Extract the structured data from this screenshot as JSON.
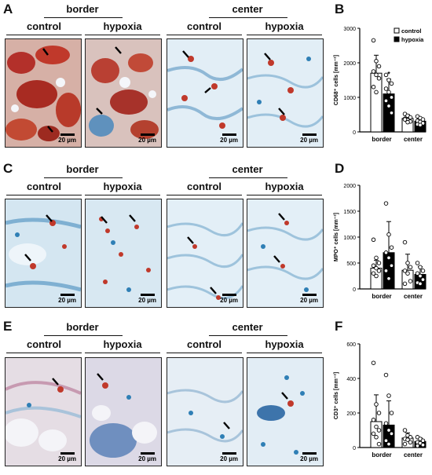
{
  "panels": [
    {
      "letter": "A",
      "stain": "cd68",
      "groups": [
        {
          "title": "border",
          "cols": [
            {
              "label": "control",
              "scale": "20 µm"
            },
            {
              "label": "hypoxia",
              "scale": "20 µm"
            }
          ]
        },
        {
          "title": "center",
          "cols": [
            {
              "label": "control",
              "scale": "20 µm"
            },
            {
              "label": "hypoxia",
              "scale": "20 µm"
            }
          ]
        }
      ]
    },
    {
      "letter": "C",
      "stain": "mpo",
      "groups": [
        {
          "title": "border",
          "cols": [
            {
              "label": "control",
              "scale": "20 µm"
            },
            {
              "label": "hypoxia",
              "scale": "20 µm"
            }
          ]
        },
        {
          "title": "center",
          "cols": [
            {
              "label": "control",
              "scale": "20 µm"
            },
            {
              "label": "hypoxia",
              "scale": "20 µm"
            }
          ]
        }
      ]
    },
    {
      "letter": "E",
      "stain": "cd3",
      "groups": [
        {
          "title": "border",
          "cols": [
            {
              "label": "control",
              "scale": "20 µm"
            },
            {
              "label": "hypoxia",
              "scale": "20 µm"
            }
          ]
        },
        {
          "title": "center",
          "cols": [
            {
              "label": "control",
              "scale": "20 µm"
            },
            {
              "label": "hypoxia",
              "scale": "20 µm"
            }
          ]
        }
      ]
    }
  ],
  "colors": {
    "bg_tissue": "#dfeef6",
    "stroma": "#8fb8d6",
    "nuclei_blue": "#2f7fb5",
    "stain_red": "#c0392b",
    "bar_control": "#ffffff",
    "bar_hypoxia": "#000000"
  },
  "chart_data": [
    {
      "letter": "B",
      "type": "bar",
      "categories": [
        "border",
        "center"
      ],
      "ylabel": "CD68⁺ cells [mm⁻²]",
      "ylim": [
        0,
        3000
      ],
      "yticks": [
        "0",
        "1000",
        "2000",
        "3000"
      ],
      "legend": [
        "control",
        "hypoxia"
      ],
      "legend_position": "top-right",
      "series": [
        {
          "name": "control",
          "values": [
            1700,
            390
          ],
          "err": [
            520,
            110
          ],
          "points": [
            [
              2650,
              2050,
              1900,
              1750,
              1650,
              1550,
              1300,
              1150
            ],
            [
              520,
              470,
              420,
              380,
              340,
              300,
              360,
              280
            ]
          ]
        },
        {
          "name": "hypoxia",
          "values": [
            1100,
            310
          ],
          "err": [
            430,
            100
          ],
          "points": [
            [
              1650,
              1500,
              1400,
              1250,
              1150,
              1000,
              900,
              750,
              550
            ],
            [
              450,
              400,
              360,
              320,
              290,
              250,
              220,
              200
            ]
          ]
        }
      ],
      "annotation": "*"
    },
    {
      "letter": "D",
      "type": "bar",
      "categories": [
        "border",
        "center"
      ],
      "ylabel": "MPO⁺ cells [mm⁻²]",
      "ylim": [
        0,
        2000
      ],
      "yticks": [
        "0",
        "500",
        "1000",
        "1500",
        "2000"
      ],
      "series": [
        {
          "name": "control",
          "values": [
            400,
            360
          ],
          "err": [
            150,
            310
          ],
          "points": [
            [
              950,
              600,
              500,
              450,
              400,
              350,
              300,
              250
            ],
            [
              900,
              500,
              420,
              350,
              300,
              150,
              100
            ]
          ]
        },
        {
          "name": "hypoxia",
          "values": [
            700,
            280
          ],
          "err": [
            600,
            150
          ],
          "points": [
            [
              1650,
              1050,
              800,
              700,
              600,
              450,
              350,
              200
            ],
            [
              500,
              420,
              350,
              300,
              250,
              180,
              120,
              100
            ]
          ]
        }
      ]
    },
    {
      "letter": "F",
      "type": "bar",
      "categories": [
        "border",
        "center"
      ],
      "ylabel": "CD3⁺ cells [mm⁻²]",
      "ylim": [
        0,
        600
      ],
      "yticks": [
        "0",
        "200",
        "400",
        "600"
      ],
      "series": [
        {
          "name": "control",
          "values": [
            150,
            55
          ],
          "err": [
            155,
            30
          ],
          "points": [
            [
              490,
              250,
              200,
              160,
              120,
              100,
              80,
              60,
              20
            ],
            [
              100,
              70,
              60,
              50,
              45,
              30,
              20
            ]
          ]
        },
        {
          "name": "hypoxia",
          "values": [
            130,
            35
          ],
          "err": [
            140,
            20
          ],
          "points": [
            [
              420,
              300,
              200,
              140,
              100,
              80,
              40,
              20
            ],
            [
              60,
              50,
              40,
              30,
              25,
              15,
              10
            ]
          ]
        }
      ]
    }
  ]
}
